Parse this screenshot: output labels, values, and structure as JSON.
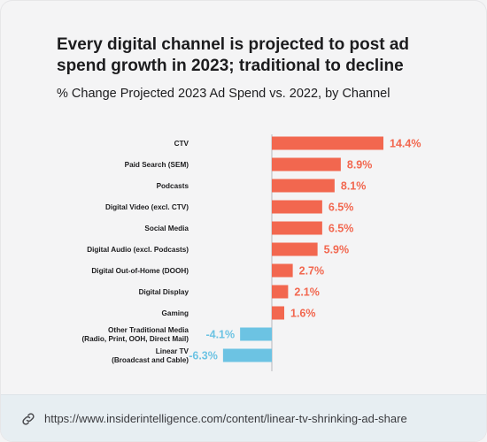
{
  "title": "Every digital channel is projected to post ad spend growth in 2023; traditional to decline",
  "subtitle": "% Change Projected 2023 Ad Spend vs. 2022, by Channel",
  "url": "https://www.insiderintelligence.com/content/linear-tv-shrinking-ad-share",
  "colors": {
    "positive": "#f2674f",
    "negative": "#6cc3e3",
    "axis": "#b9b9bd"
  },
  "chart_data": {
    "type": "bar",
    "orientation": "horizontal",
    "categories": [
      "CTV",
      "Paid Search (SEM)",
      "Podcasts",
      "Digital Video (excl. CTV)",
      "Social Media",
      "Digital Audio (excl. Podcasts)",
      "Digital Out-of-Home (DOOH)",
      "Digital Display",
      "Gaming",
      "Other Traditional Media\n(Radio, Print, OOH, Direct Mail)",
      "Linear TV\n(Broadcast and Cable)"
    ],
    "values": [
      14.4,
      8.9,
      8.1,
      6.5,
      6.5,
      5.9,
      2.7,
      2.1,
      1.6,
      -4.1,
      -6.3
    ],
    "value_labels": [
      "14.4%",
      "8.9%",
      "8.1%",
      "6.5%",
      "6.5%",
      "5.9%",
      "2.7%",
      "2.1%",
      "1.6%",
      "-4.1%",
      "-6.3%"
    ]
  }
}
